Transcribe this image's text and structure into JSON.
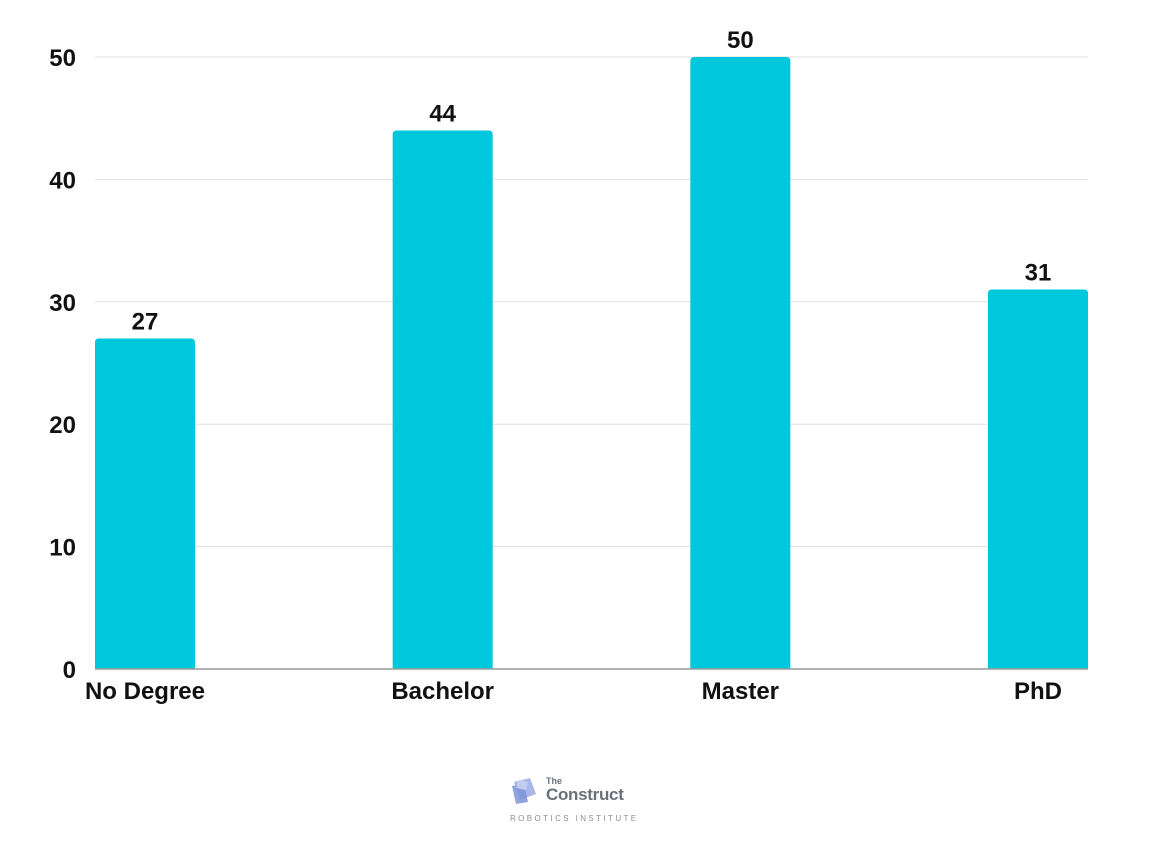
{
  "chart_data": {
    "type": "bar",
    "categories": [
      "No Degree",
      "Bachelor",
      "Master",
      "PhD"
    ],
    "values": [
      27,
      44,
      50,
      31
    ],
    "title": "",
    "xlabel": "",
    "ylabel": "",
    "ylim": [
      0,
      50
    ],
    "yticks": [
      0,
      10,
      20,
      30,
      40,
      50
    ],
    "grid": true,
    "data_labels": true,
    "bar_color": "#00c8dc",
    "grid_color": "#e0e0e0",
    "axis_color": "#9a9a9a"
  },
  "branding": {
    "the": "The",
    "name": "Construct",
    "subtitle": "ROBOTICS INSTITUTE",
    "logo_icon": "cube-logo-icon"
  }
}
